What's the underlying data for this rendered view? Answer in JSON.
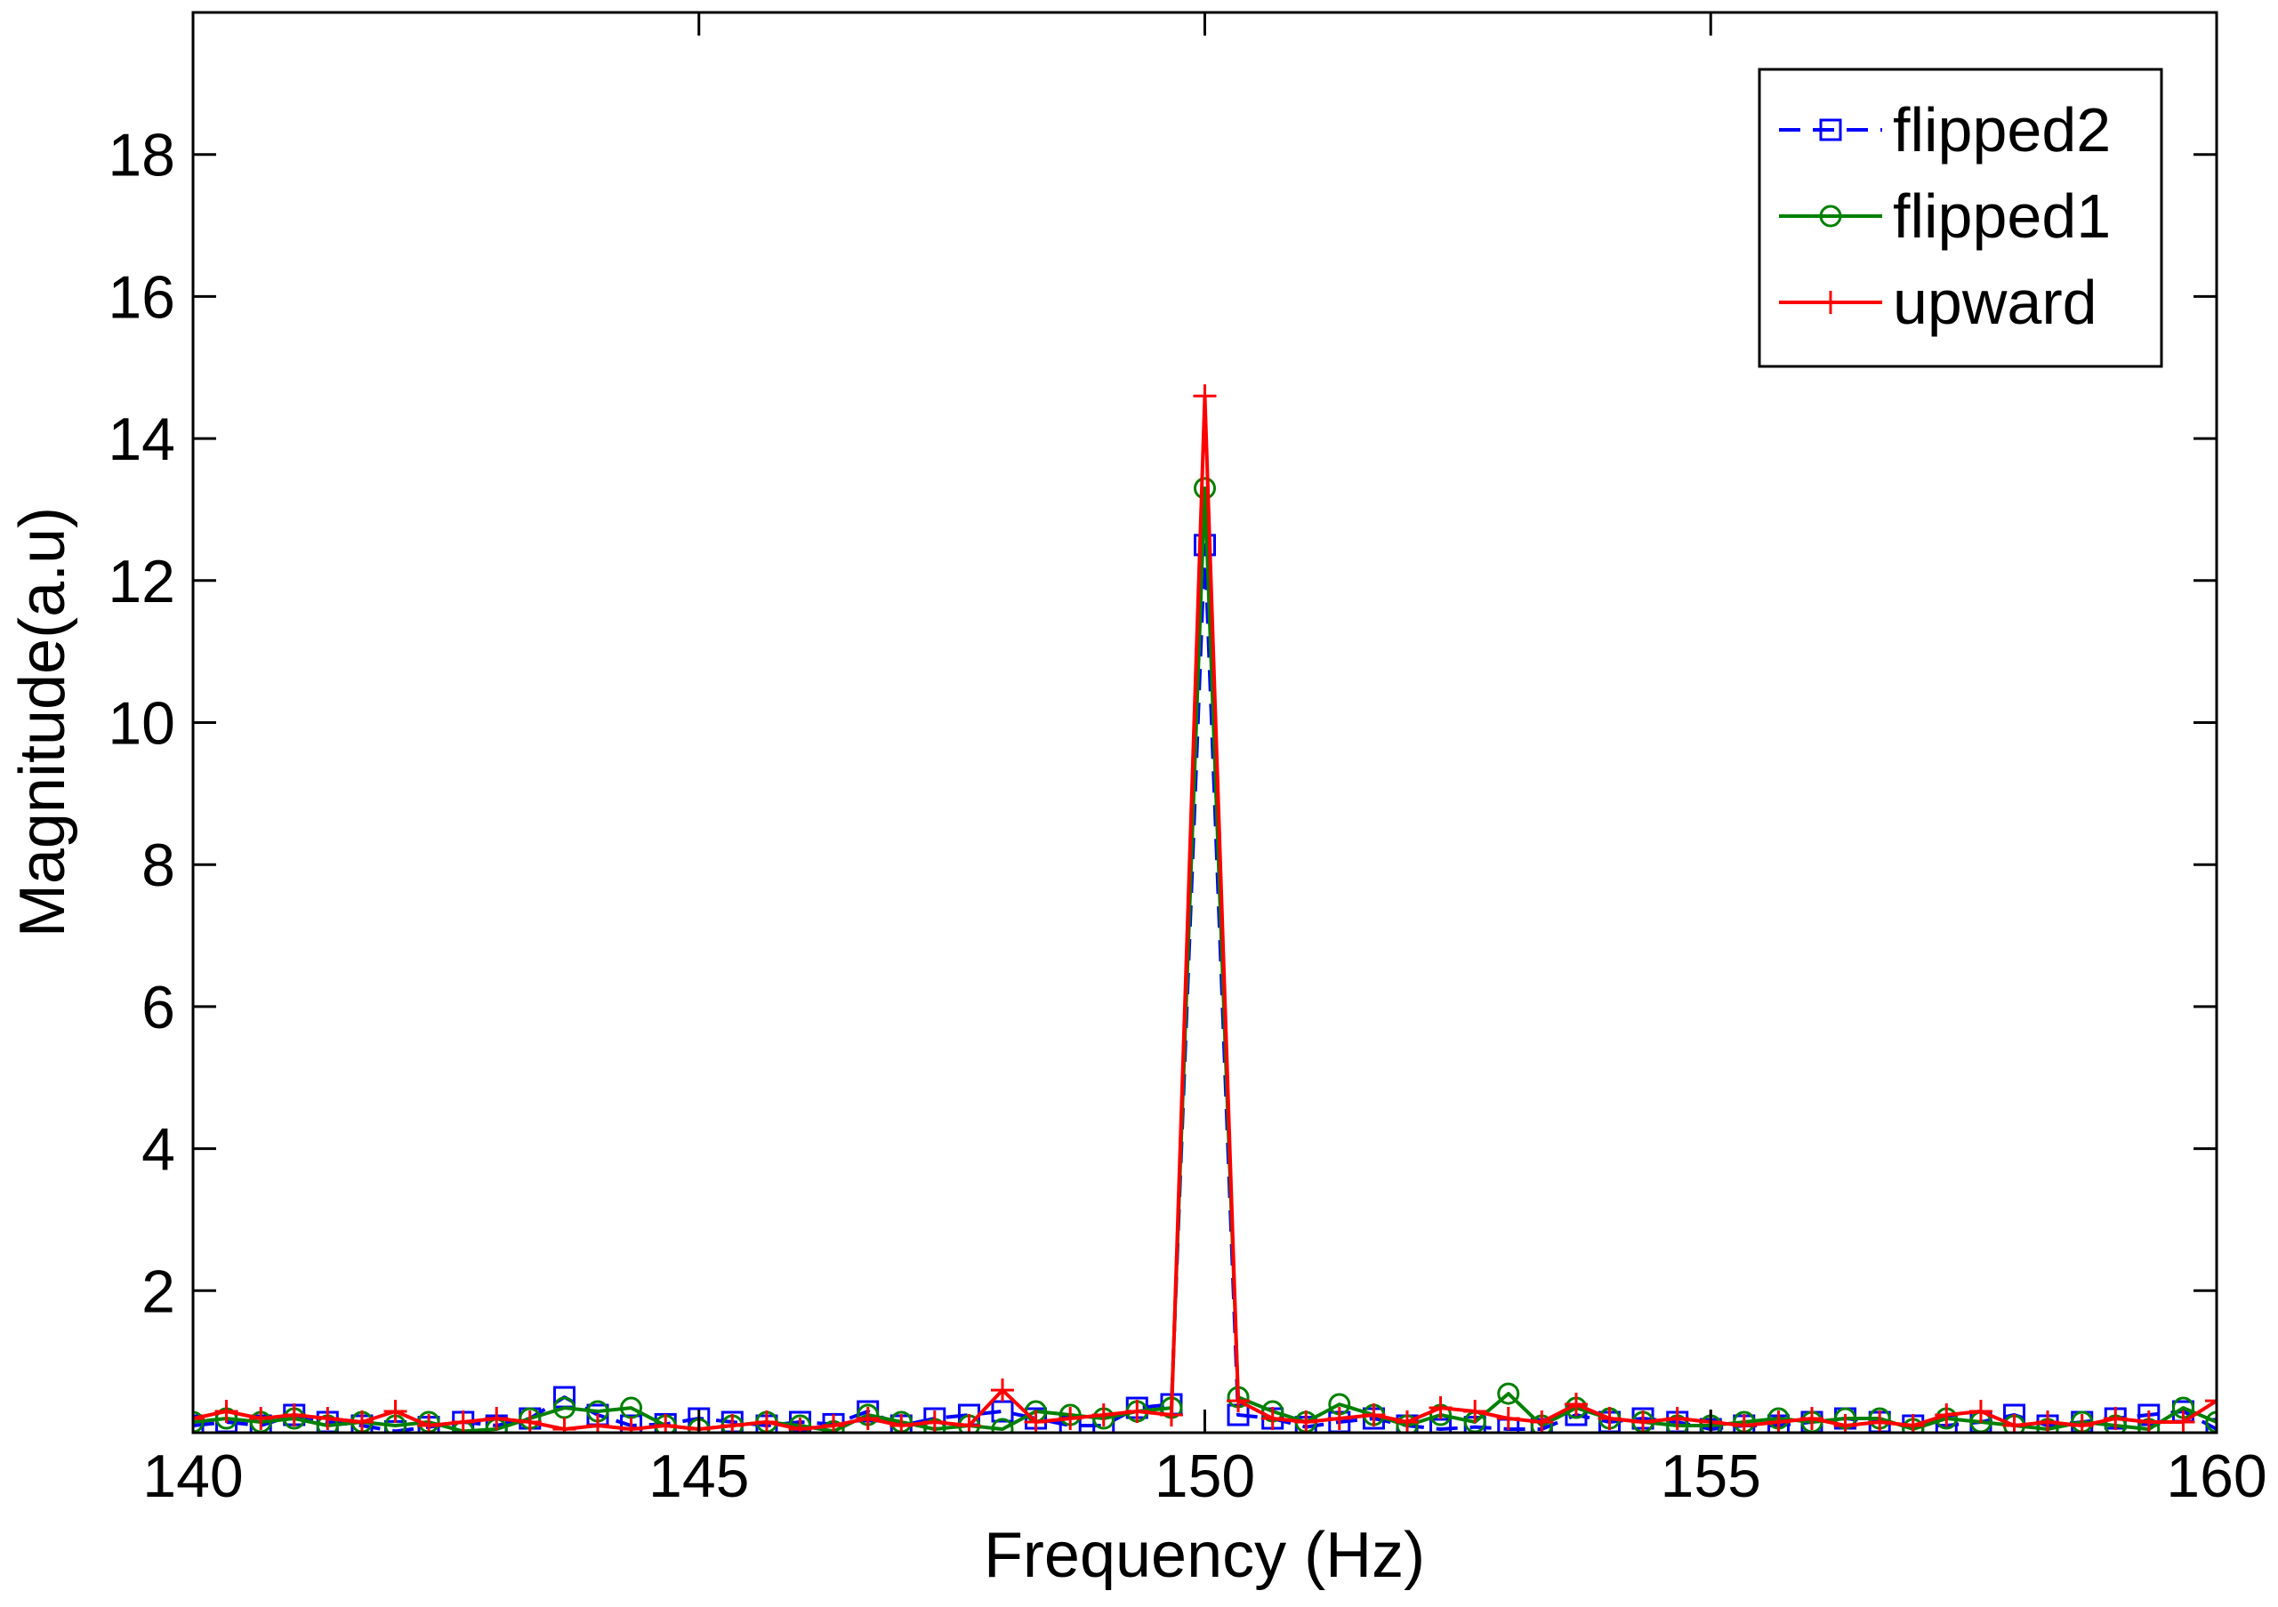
{
  "chart_data": {
    "type": "line",
    "title": "",
    "xlabel": "Frequency (Hz)",
    "ylabel": "Magnitude(a.u)",
    "xlim": [
      140,
      160
    ],
    "ylim": [
      0,
      20
    ],
    "xticks": [
      140,
      145,
      150,
      155,
      160
    ],
    "yticks": [
      2,
      4,
      6,
      8,
      10,
      12,
      14,
      16,
      18
    ],
    "grid": false,
    "legend": {
      "position": "top-right",
      "entries": [
        "flipped2",
        "flipped1",
        "upward"
      ]
    },
    "series": [
      {
        "name": "flipped2",
        "color": "#0000ff",
        "line": "dashed",
        "marker": "square",
        "x": [
          140,
          140.33,
          140.67,
          141,
          141.33,
          141.67,
          142,
          142.33,
          142.67,
          143,
          143.33,
          143.67,
          144,
          144.33,
          144.67,
          145,
          145.33,
          145.67,
          146,
          146.33,
          146.67,
          147,
          147.33,
          147.67,
          148,
          148.33,
          148.67,
          149,
          149.33,
          149.67,
          150,
          150.33,
          150.67,
          151,
          151.33,
          151.67,
          152,
          152.33,
          152.67,
          153,
          153.33,
          153.67,
          154,
          154.33,
          154.67,
          155,
          155.33,
          155.67,
          156,
          156.33,
          156.67,
          157,
          157.33,
          157.67,
          158,
          158.33,
          158.67,
          159,
          159.33,
          159.67,
          160
        ],
        "y": [
          0.1,
          0.15,
          0.1,
          0.25,
          0.15,
          0.1,
          0.02,
          0.08,
          0.15,
          0.1,
          0.2,
          0.5,
          0.25,
          0.1,
          0.12,
          0.2,
          0.15,
          0.1,
          0.15,
          0.12,
          0.3,
          0.1,
          0.2,
          0.25,
          0.3,
          0.2,
          0.1,
          0.1,
          0.35,
          0.4,
          12.5,
          0.25,
          0.2,
          0.08,
          0.15,
          0.2,
          0.1,
          0.05,
          0.08,
          0.05,
          0.05,
          0.25,
          0.15,
          0.2,
          0.15,
          0.05,
          0.1,
          0.1,
          0.15,
          0.2,
          0.15,
          0.1,
          0.1,
          0.15,
          0.25,
          0.1,
          0.15,
          0.2,
          0.25,
          0.3,
          0.05
        ]
      },
      {
        "name": "flipped1",
        "color": "#008000",
        "line": "solid",
        "marker": "circle",
        "x": [
          140,
          140.33,
          140.67,
          141,
          141.33,
          141.67,
          142,
          142.33,
          142.67,
          143,
          143.33,
          143.67,
          144,
          144.33,
          144.67,
          145,
          145.33,
          145.67,
          146,
          146.33,
          146.67,
          147,
          147.33,
          147.67,
          148,
          148.33,
          148.67,
          149,
          149.33,
          149.67,
          150,
          150.33,
          150.67,
          151,
          151.33,
          151.67,
          152,
          152.33,
          152.67,
          153,
          153.33,
          153.67,
          154,
          154.33,
          154.67,
          155,
          155.33,
          155.67,
          156,
          156.33,
          156.67,
          157,
          157.33,
          157.67,
          158,
          158.33,
          158.67,
          159,
          159.33,
          159.67,
          160
        ],
        "y": [
          0.15,
          0.2,
          0.15,
          0.2,
          0.1,
          0.15,
          0.1,
          0.15,
          0.02,
          0.05,
          0.2,
          0.35,
          0.3,
          0.35,
          0.1,
          0.05,
          0.1,
          0.15,
          0.1,
          0.02,
          0.25,
          0.15,
          0.05,
          0.1,
          0.05,
          0.3,
          0.25,
          0.2,
          0.3,
          0.35,
          13.3,
          0.5,
          0.3,
          0.15,
          0.4,
          0.25,
          0.1,
          0.25,
          0.15,
          0.55,
          0.1,
          0.35,
          0.2,
          0.15,
          0.1,
          0.1,
          0.15,
          0.2,
          0.15,
          0.2,
          0.2,
          0.05,
          0.2,
          0.15,
          0.1,
          0.05,
          0.15,
          0.1,
          0.05,
          0.35,
          0.15
        ]
      },
      {
        "name": "upward",
        "color": "#ff0000",
        "line": "solid",
        "marker": "plus",
        "x": [
          140,
          140.33,
          140.67,
          141,
          141.33,
          141.67,
          142,
          142.33,
          142.67,
          143,
          143.33,
          143.67,
          144,
          144.33,
          144.67,
          145,
          145.33,
          145.67,
          146,
          146.33,
          146.67,
          147,
          147.33,
          147.67,
          148,
          148.33,
          148.67,
          149,
          149.33,
          149.67,
          150,
          150.33,
          150.67,
          151,
          151.33,
          151.67,
          152,
          152.33,
          152.67,
          153,
          153.33,
          153.67,
          154,
          154.33,
          154.67,
          155,
          155.33,
          155.67,
          156,
          156.33,
          156.67,
          157,
          157.33,
          157.67,
          158,
          158.33,
          158.67,
          159,
          159.33,
          159.67,
          160
        ],
        "y": [
          0.2,
          0.3,
          0.2,
          0.25,
          0.2,
          0.15,
          0.3,
          0.1,
          0.15,
          0.2,
          0.15,
          0.05,
          0.1,
          0.05,
          0.1,
          0.05,
          0.1,
          0.15,
          0.05,
          0.1,
          0.2,
          0.1,
          0.15,
          0.1,
          0.6,
          0.15,
          0.2,
          0.25,
          0.3,
          0.25,
          14.6,
          0.45,
          0.2,
          0.15,
          0.2,
          0.25,
          0.15,
          0.35,
          0.3,
          0.2,
          0.15,
          0.4,
          0.2,
          0.15,
          0.2,
          0.15,
          0.1,
          0.15,
          0.2,
          0.1,
          0.15,
          0.1,
          0.25,
          0.3,
          0.1,
          0.15,
          0.1,
          0.2,
          0.15,
          0.15,
          0.45
        ]
      }
    ]
  }
}
